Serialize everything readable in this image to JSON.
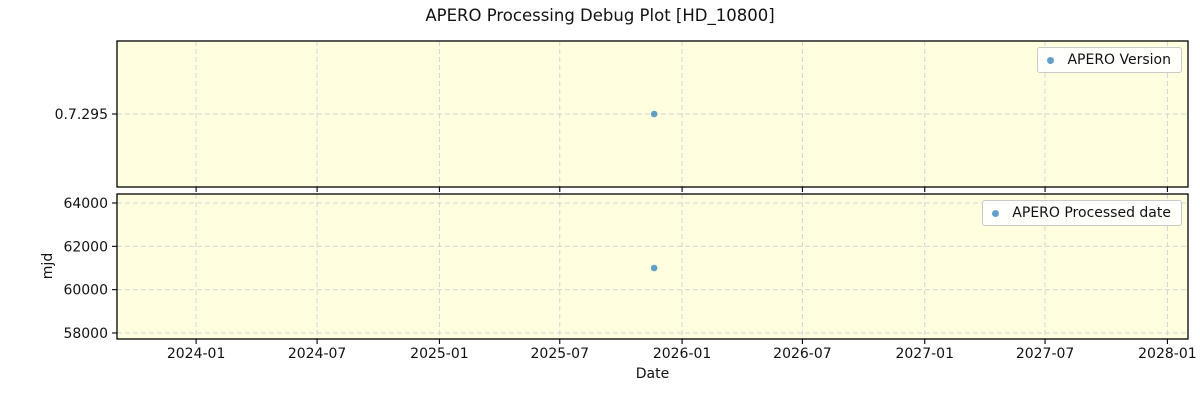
{
  "chart_data": {
    "type": "scatter",
    "title": "APERO Processing Debug Plot [HD_10800]",
    "xlabel": "Date",
    "grid": true,
    "legend_position": "upper right",
    "x_domain": [
      "2023-09-04",
      "2028-02-01"
    ],
    "x_ticks": [
      {
        "label": "2024-01",
        "date": "2024-01-01"
      },
      {
        "label": "2024-07",
        "date": "2024-07-01"
      },
      {
        "label": "2025-01",
        "date": "2025-01-01"
      },
      {
        "label": "2025-07",
        "date": "2025-07-01"
      },
      {
        "label": "2026-01",
        "date": "2026-01-01"
      },
      {
        "label": "2026-07",
        "date": "2026-07-01"
      },
      {
        "label": "2027-01",
        "date": "2027-01-01"
      },
      {
        "label": "2027-07",
        "date": "2027-07-01"
      },
      {
        "label": "2028-01",
        "date": "2028-01-01"
      }
    ],
    "colors": {
      "plot_bg": "#ffffe0",
      "grid": "#d4d4d4",
      "spine": "#000000",
      "text": "#111111",
      "marker": "#1f77b4",
      "marker_opacity": 0.7
    },
    "panels": [
      {
        "name": "version",
        "legend": "APERO Version",
        "ylabel": "",
        "y_categories": [
          "0.7.295"
        ],
        "points": [
          {
            "x": "2025-11-20",
            "y": "0.7.295"
          }
        ]
      },
      {
        "name": "mjd",
        "legend": "APERO Processed date",
        "ylabel": "mjd",
        "ylim": [
          57723,
          64415
        ],
        "y_ticks": [
          58000,
          60000,
          62000,
          64000
        ],
        "points": [
          {
            "x": "2025-11-20",
            "y": 61000
          }
        ]
      }
    ]
  }
}
